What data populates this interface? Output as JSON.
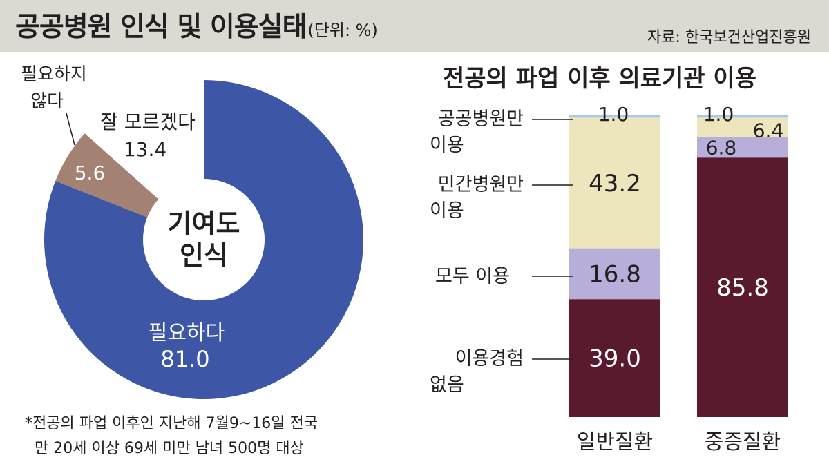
{
  "header": {
    "title": "공공병원 인식 및 이용실태",
    "unit": "(단위: %)",
    "source": "자료: 한국보건산업진흥원"
  },
  "note": {
    "line1": "*전공의 파업 이후인 지난해 7월9~16일 전국",
    "line2": "만 20세 이상 69세 미만 남녀 500명 대상"
  },
  "chart_data": [
    {
      "type": "pie",
      "variant": "donut",
      "center_label": [
        "기여도",
        "인식"
      ],
      "slices": [
        {
          "label": "필요하다",
          "value": 81.0,
          "color": "#3d56a6"
        },
        {
          "label": "필요하지 않다",
          "label_lines": [
            "필요하지",
            "않다"
          ],
          "value": 5.6,
          "color": "#a48273"
        },
        {
          "label": "잘 모르겠다",
          "value": 13.4,
          "color": "#ffffff"
        }
      ]
    },
    {
      "type": "bar",
      "stacked": true,
      "title": "전공의 파업 이후 의료기관 이용",
      "categories": [
        "일반질환",
        "중증질환"
      ],
      "series": [
        {
          "name": "이용경험 없음",
          "label_lines": [
            "이용경험",
            "없음"
          ],
          "values": [
            39.0,
            85.8
          ],
          "color": "#5a1a2e"
        },
        {
          "name": "모두 이용",
          "label_lines": [
            "모두 이용"
          ],
          "values": [
            16.8,
            6.8
          ],
          "color": "#b7afd9"
        },
        {
          "name": "민간병원만 이용",
          "label_lines": [
            "민간병원만",
            "이용"
          ],
          "values": [
            43.2,
            6.4
          ],
          "color": "#ede6bd"
        },
        {
          "name": "공공병원만 이용",
          "label_lines": [
            "공공병원만",
            "이용"
          ],
          "values": [
            1.0,
            1.0
          ],
          "color": "#a9c7e8"
        }
      ],
      "ylim": [
        0,
        100
      ]
    }
  ]
}
